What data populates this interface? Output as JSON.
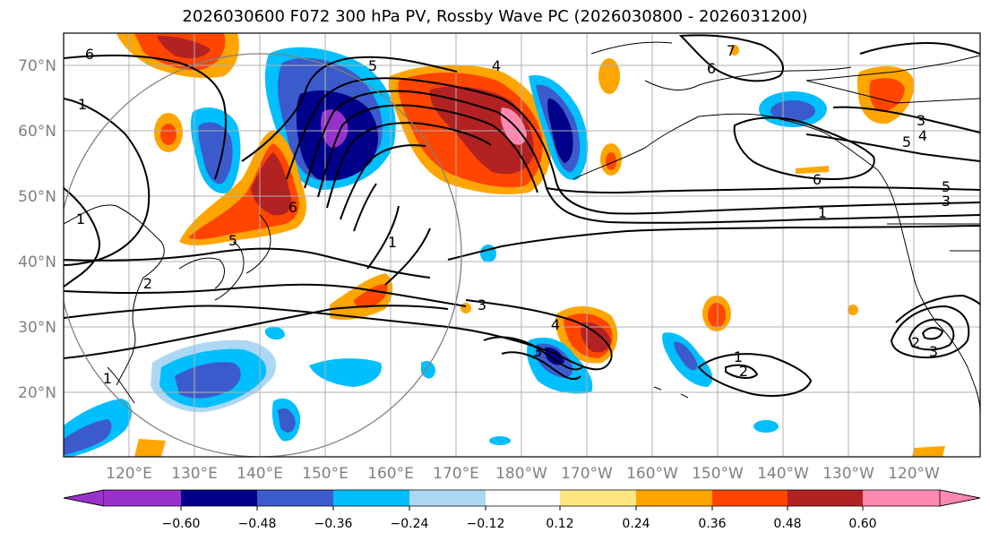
{
  "title": "2026030600 F072 300 hPa PV, Rossby Wave PC (2026030800 - 2026031200)",
  "map": {
    "lat_labels": [
      "70°N",
      "60°N",
      "50°N",
      "40°N",
      "30°N",
      "20°N"
    ],
    "lon_labels": [
      "120°E",
      "130°E",
      "140°E",
      "150°E",
      "160°E",
      "170°E",
      "180°W",
      "170°W",
      "160°W",
      "150°W",
      "140°W",
      "130°W",
      "120°W"
    ],
    "contour_labels": [
      "6",
      "1",
      "5",
      "4",
      "7",
      "6",
      "3",
      "4",
      "5",
      "6",
      "5",
      "3",
      "1",
      "1",
      "2",
      "1",
      "6",
      "5",
      "1",
      "3",
      "3",
      "1",
      "2",
      "3",
      "2",
      "4"
    ]
  },
  "colorbar": {
    "ticks": [
      "−0.60",
      "−0.48",
      "−0.36",
      "−0.24",
      "−0.12",
      "0.12",
      "0.24",
      "0.36",
      "0.48",
      "0.60"
    ],
    "colors": {
      "lt_n060": "#9932cc",
      "n060_n048": "#00008b",
      "n048_n036": "#3b5bcc",
      "n036_n024": "#00bfff",
      "n024_n012": "#add8f5",
      "n012_012": "#ffffff",
      "012_024": "#ffe680",
      "024_036": "#ffa500",
      "036_048": "#ff4500",
      "048_060": "#b22222",
      "gt_060": "#ff88b0"
    }
  }
}
